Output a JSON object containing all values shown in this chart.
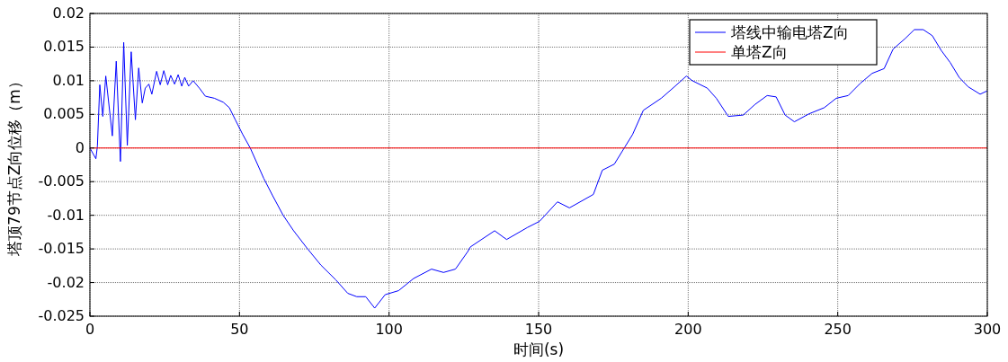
{
  "chart_data": {
    "type": "line",
    "xlabel": "时间(s)",
    "ylabel": "塔顶79节点Z向位移（m）",
    "xlim": [
      0,
      300
    ],
    "ylim": [
      -0.025,
      0.02
    ],
    "xticks": [
      0,
      50,
      100,
      150,
      200,
      250,
      300
    ],
    "yticks": [
      -0.025,
      -0.02,
      -0.015,
      -0.01,
      -0.005,
      0,
      0.005,
      0.01,
      0.015,
      0.02
    ],
    "grid": true,
    "legend": "top right",
    "series": [
      {
        "name": "塔线中输电塔Z向",
        "color": "#0000ff",
        "x": [
          0,
          2.0,
          2.5,
          3.3,
          4.3,
          5.3,
          7.5,
          8.8,
          10.2,
          11.3,
          12.5,
          13.8,
          15.2,
          16.3,
          17.5,
          18.5,
          19.7,
          20.7,
          22.3,
          23.5,
          24.7,
          26.0,
          27.0,
          28.3,
          29.5,
          30.7,
          31.7,
          33.0,
          34.5,
          36.6,
          38.6,
          41.6,
          44.6,
          46.6,
          48.6,
          51.1,
          53.6,
          58.1,
          61.1,
          64.6,
          68.1,
          72.6,
          77.2,
          82.2,
          86.2,
          89.2,
          92.2,
          95.2,
          98.7,
          103.2,
          108.2,
          114.2,
          118.2,
          122.2,
          126.3,
          127.2,
          135.3,
          139.3,
          146.3,
          150.3,
          156.3,
          160.3,
          168.3,
          171.3,
          175.3,
          178.9,
          181.4,
          185,
          191,
          195.4,
          199.4,
          201.4,
          206.4,
          209.4,
          213.4,
          218.4,
          222.4,
          226.4,
          229.4,
          232.4,
          235.5,
          240.5,
          245.5,
          249.5,
          253.5,
          257.5,
          261.5,
          265.5,
          268.5,
          272.6,
          275.6,
          278.6,
          281.6,
          284.6,
          287.6,
          290.6,
          293.6,
          297.6,
          300
        ],
        "values": [
          0,
          -0.0016,
          0.0003,
          0.0094,
          0.0047,
          0.0107,
          0.0018,
          0.0129,
          -0.002,
          0.0157,
          0.0004,
          0.0143,
          0.0042,
          0.0119,
          0.0067,
          0.0089,
          0.0095,
          0.008,
          0.0114,
          0.0094,
          0.0115,
          0.0094,
          0.0108,
          0.0095,
          0.0109,
          0.0092,
          0.0105,
          0.0092,
          0.01,
          0.0089,
          0.0077,
          0.0074,
          0.0068,
          0.006,
          0.0042,
          0.002,
          0,
          -0.0045,
          -0.0071,
          -0.01,
          -0.0123,
          -0.0149,
          -0.0174,
          -0.0196,
          -0.0216,
          -0.0221,
          -0.0221,
          -0.0238,
          -0.0218,
          -0.0212,
          -0.0194,
          -0.018,
          -0.0185,
          -0.018,
          -0.0154,
          -0.0147,
          -0.0123,
          -0.0136,
          -0.0118,
          -0.0109,
          -0.008,
          -0.0089,
          -0.0069,
          -0.0033,
          -0.0024,
          0.0002,
          0.002,
          0.0056,
          0.0074,
          0.0091,
          0.0107,
          0.01,
          0.0089,
          0.0074,
          0.0047,
          0.0049,
          0.0065,
          0.0078,
          0.0076,
          0.0049,
          0.0039,
          0.0051,
          0.006,
          0.0074,
          0.0078,
          0.0096,
          0.0111,
          0.0118,
          0.0147,
          0.0163,
          0.0176,
          0.0176,
          0.0167,
          0.0145,
          0.0127,
          0.0105,
          0.0091,
          0.008,
          0.0085
        ]
      },
      {
        "name": "单塔Z向",
        "color": "#ff0000",
        "x": [
          0,
          300
        ],
        "values": [
          0,
          0
        ]
      }
    ]
  }
}
